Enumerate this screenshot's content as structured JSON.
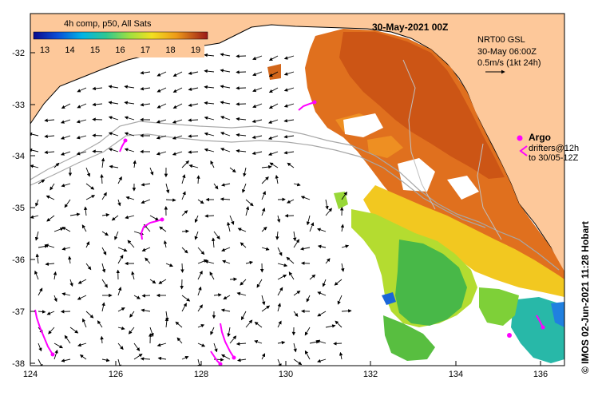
{
  "map": {
    "title_main": "30-May-2021 00Z",
    "colorbar_title": "4h comp, p50, All Sats",
    "colorbar_ticks": [
      "13",
      "14",
      "15",
      "16",
      "17",
      "18",
      "19"
    ],
    "model_label": "NRT00 GSL",
    "model_time": "30-May 06:00Z",
    "vector_scale": "0.5m/s (1kt 24h)",
    "argo_label": "Argo",
    "drifters_line1": "drifters@12h",
    "drifters_line2": "to 30/05-12Z",
    "credit": "© IMOS 02-Jun-2021 11:28 Hobart",
    "x_ticks": [
      "124",
      "126",
      "128",
      "130",
      "132",
      "134",
      "136"
    ],
    "y_ticks": [
      "-32",
      "-33",
      "-34",
      "-35",
      "-36",
      "-37",
      "-38"
    ],
    "land_color": "#fdc89a",
    "drifter_color": "#ff00ff"
  }
}
